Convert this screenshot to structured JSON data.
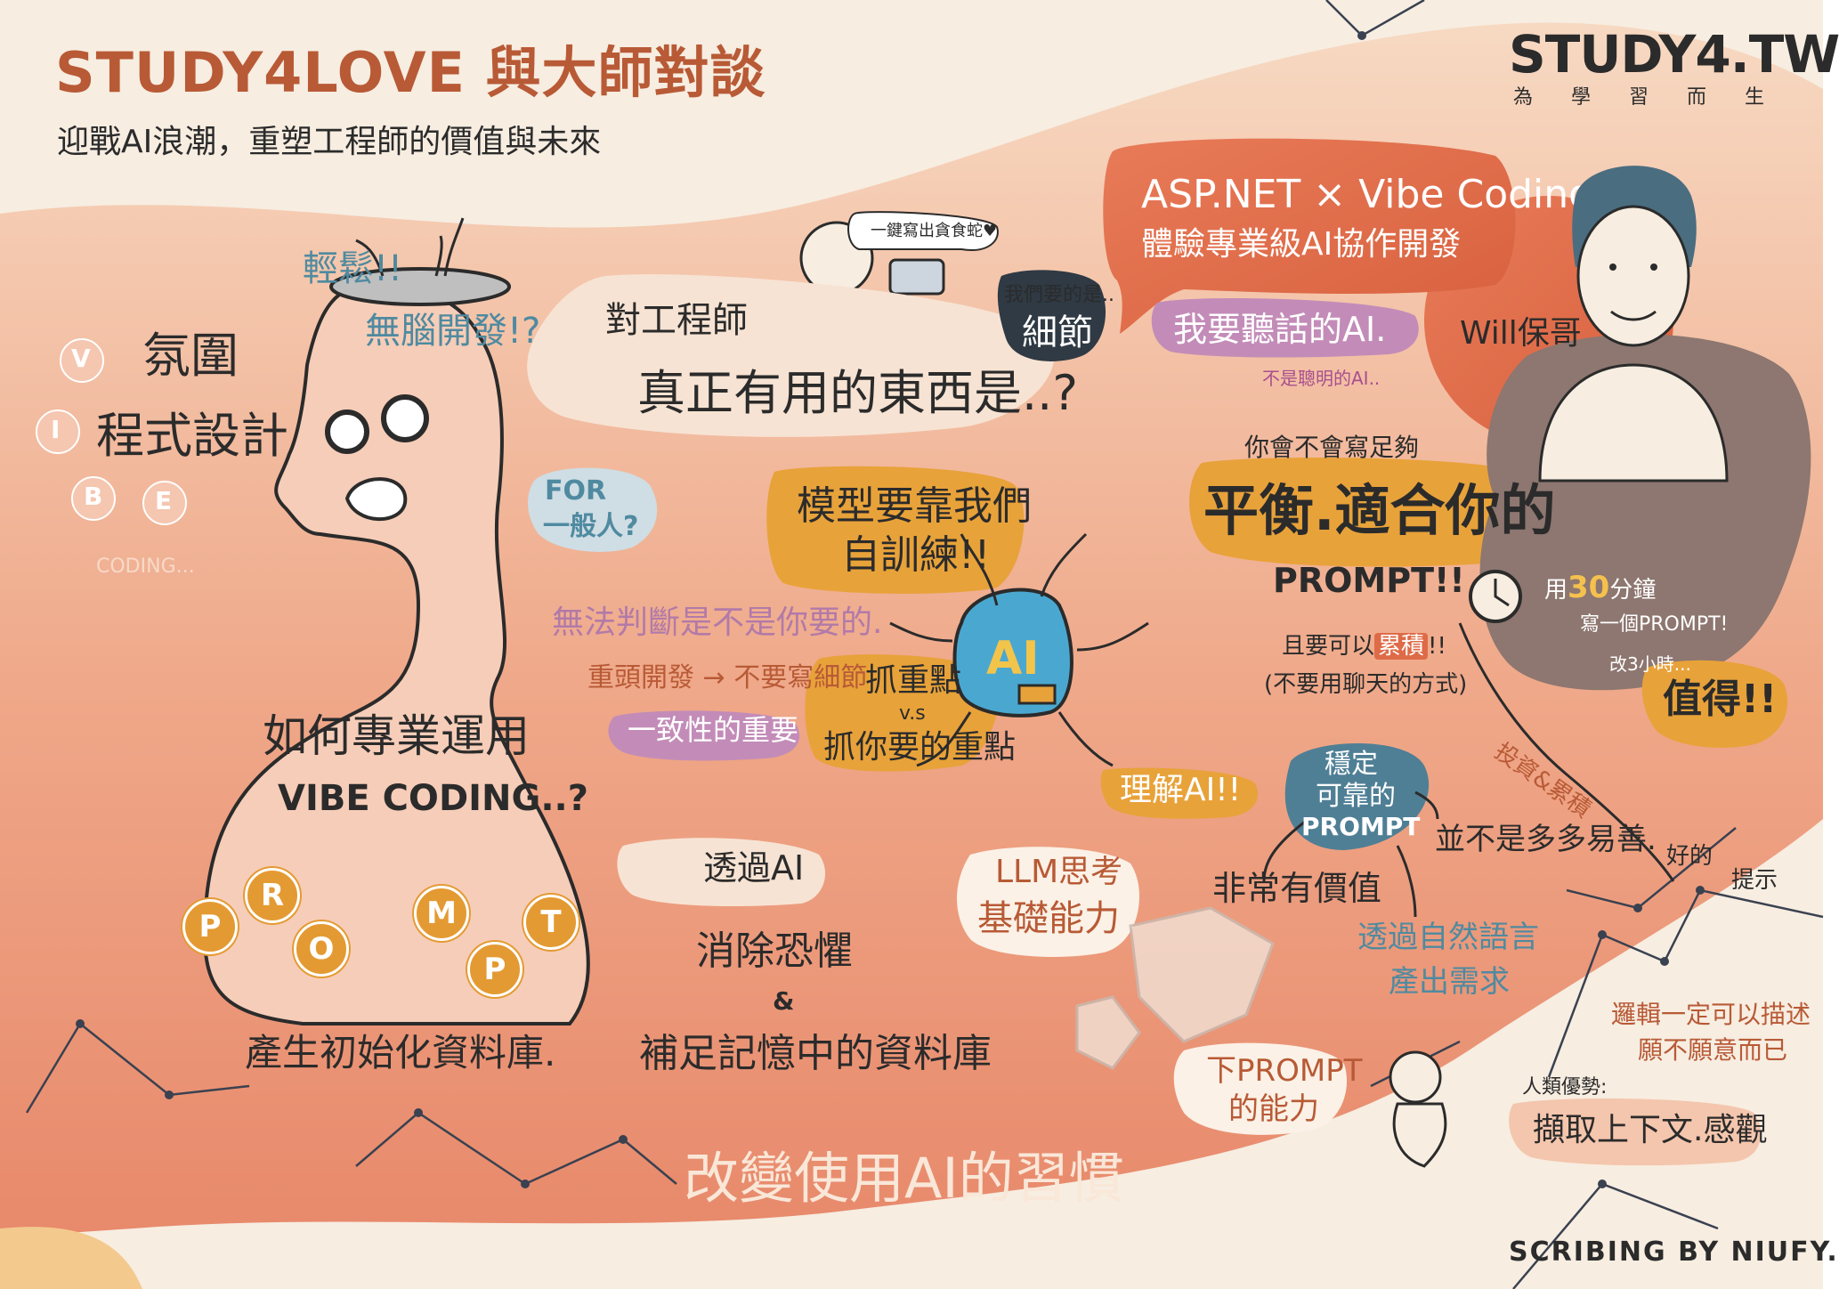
{
  "header": {
    "title": "STUDY4LOVE 與大師對談",
    "subtitle": "迎戰AI浪潮，重塑工程師的價值與未來"
  },
  "logo": {
    "brand": "STUDY4.TW",
    "tagline": "為 學 習 而 生"
  },
  "speaker": {
    "talk_title_line1": "ASP.NET × Vibe Coding",
    "talk_title_line2": "體驗專業級AI協作開發",
    "name": "Will保哥",
    "obedient_ai": "我要聽話的AI.",
    "not_smart_ai": "不是聰明的AI.."
  },
  "head_section": {
    "relax": "輕鬆!!",
    "no_brain": "無腦開發!?",
    "vibe_line1": "氛圍",
    "vibe_line2": "程式設計",
    "vibe_letters": [
      "V",
      "I",
      "B",
      "E"
    ],
    "coding_small": "CODING...",
    "for_general_line1": "FOR",
    "for_general_line2": "一般人?"
  },
  "engineer_section": {
    "sign_text": "一鍵寫出貪食蛇♥",
    "for_engineers": "對工程師",
    "useful_thing": "真正有用的東西是..?",
    "we_want_line1": "我們要的是..",
    "details": "細節"
  },
  "model_training": {
    "line1": "模型要靠我們",
    "line2": "自訓練!!"
  },
  "ai_chip": {
    "label": "AI"
  },
  "left_notes": {
    "cannot_judge": "無法判斷是不是你要的.",
    "restart_dev": "重頭開發 → 不要寫細節",
    "consistency": "一致性的重要"
  },
  "key_points": {
    "line1": "抓重點",
    "line2": "v.s",
    "line3": "抓你要的重點"
  },
  "professional": {
    "line1": "如何專業運用",
    "line2": "VIBE CODING..?"
  },
  "prompt_letters": [
    "P",
    "R",
    "O",
    "M",
    "P",
    "T"
  ],
  "init_db": "產生初始化資料庫.",
  "via_ai": {
    "line1": "透過AI",
    "line2": "消除恐懼",
    "amp": "&",
    "line3": "補足記憶中的資料庫"
  },
  "change_habit": "改變使用AI的習慣",
  "prompt_right": {
    "can_you_write": "你會不會寫足夠",
    "balanced": "平衡.適合你的",
    "prompt_label": "PROMPT!!",
    "accumulate_prefix": "且要可以",
    "accumulate_word": "累積",
    "accumulate_suffix": "!!",
    "not_chat": "(不要用聊天的方式)"
  },
  "understand_ai": "理解AI!!",
  "stable_prompt": {
    "line1": "穩定",
    "line2": "可靠的",
    "line3": "PROMPT"
  },
  "branches": {
    "valuable": "非常有價值",
    "not_easy": "並不是多多易善.",
    "natural_lang_line1": "透過自然語言",
    "natural_lang_line2": "產出需求"
  },
  "llm": {
    "line1": "LLM思考",
    "line2": "基礎能力"
  },
  "prompt_ability": {
    "line1": "下PROMPT",
    "line2": "的能力"
  },
  "time_cloud": {
    "use": "用",
    "minutes": "30",
    "minutes_suffix": "分鐘",
    "write_prompt": "寫一個PROMPT!",
    "fix_hours": "改3小時...",
    "worth": "值得!!"
  },
  "investment": "投資&累積",
  "good_prompt": {
    "word1": "好的",
    "word2": "提示"
  },
  "logic_note": {
    "line1": "邏輯一定可以描述",
    "line2": "願不願意而已"
  },
  "human_advantage": {
    "label": "人類優勢:",
    "value": "擷取上下文.感觀"
  },
  "credit": "SCRIBING BY NIUFY.",
  "colors": {
    "peach": "#f2b896",
    "coral": "#de6b47",
    "orange_chip": "#e0a13a",
    "teal": "#4f8aa0",
    "purple": "#b88ab3",
    "dark": "#2b2b2b"
  }
}
